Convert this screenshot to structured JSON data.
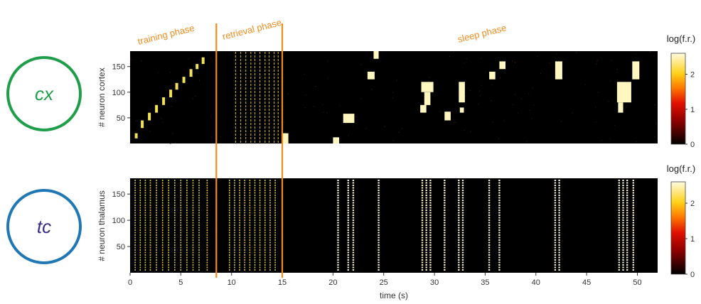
{
  "figure": {
    "circles": [
      {
        "label": "cx",
        "ring_color": "#1f9e4a",
        "text_color": "#1f9e4a"
      },
      {
        "label": "tc",
        "ring_color": "#1f77b4",
        "text_color": "#3b2a86"
      }
    ],
    "phase_labels": [
      "training phase",
      "retrieval phase",
      "sleep phase"
    ],
    "phase_color": "#f08c1e"
  },
  "chart_data": [
    {
      "type": "heatmap",
      "title": "",
      "xlabel": "",
      "ylabel": "# neuron cortex",
      "xlim": [
        0,
        52
      ],
      "ylim": [
        0,
        180
      ],
      "xticks": [
        0,
        5,
        10,
        15,
        20,
        25,
        30,
        35,
        40,
        45,
        50
      ],
      "yticks": [
        50,
        100,
        150
      ],
      "colorbar": {
        "label": "log(f.r.)",
        "ticks": [
          0,
          1,
          2
        ],
        "range": [
          0,
          2.6
        ]
      },
      "phase_boundaries": [
        8.5,
        15.0
      ],
      "training_blocks": [
        {
          "t": 0.6,
          "n0": 10,
          "n1": 20
        },
        {
          "t": 1.2,
          "n0": 30,
          "n1": 45
        },
        {
          "t": 1.9,
          "n0": 45,
          "n1": 60
        },
        {
          "t": 2.6,
          "n0": 60,
          "n1": 75
        },
        {
          "t": 3.3,
          "n0": 75,
          "n1": 90
        },
        {
          "t": 4.0,
          "n0": 90,
          "n1": 105
        },
        {
          "t": 4.6,
          "n0": 105,
          "n1": 118
        },
        {
          "t": 5.3,
          "n0": 118,
          "n1": 130
        },
        {
          "t": 6.0,
          "n0": 130,
          "n1": 145
        },
        {
          "t": 6.6,
          "n0": 145,
          "n1": 155
        },
        {
          "t": 7.2,
          "n0": 155,
          "n1": 168
        }
      ],
      "retrieval_lines": [
        10.4,
        10.9,
        11.4,
        11.9,
        12.3,
        12.8,
        13.3,
        13.7,
        14.2,
        14.6
      ],
      "sleep_blocks": [
        {
          "t0": 15.0,
          "t1": 15.6,
          "n0": 0,
          "n1": 20
        },
        {
          "t0": 20.0,
          "t1": 20.6,
          "n0": 0,
          "n1": 12
        },
        {
          "t0": 21.0,
          "t1": 22.1,
          "n0": 40,
          "n1": 58
        },
        {
          "t0": 23.4,
          "t1": 24.1,
          "n0": 125,
          "n1": 140
        },
        {
          "t0": 24.0,
          "t1": 24.5,
          "n0": 165,
          "n1": 180
        },
        {
          "t0": 28.7,
          "t1": 29.9,
          "n0": 100,
          "n1": 120
        },
        {
          "t0": 29.0,
          "t1": 29.6,
          "n0": 75,
          "n1": 100
        },
        {
          "t0": 28.6,
          "t1": 29.2,
          "n0": 60,
          "n1": 75
        },
        {
          "t0": 31.0,
          "t1": 31.6,
          "n0": 45,
          "n1": 62
        },
        {
          "t0": 32.4,
          "t1": 33.0,
          "n0": 80,
          "n1": 120
        },
        {
          "t0": 32.5,
          "t1": 32.9,
          "n0": 60,
          "n1": 70
        },
        {
          "t0": 35.4,
          "t1": 36.0,
          "n0": 125,
          "n1": 140
        },
        {
          "t0": 36.4,
          "t1": 37.0,
          "n0": 145,
          "n1": 160
        },
        {
          "t0": 41.9,
          "t1": 42.6,
          "n0": 125,
          "n1": 160
        },
        {
          "t0": 48.0,
          "t1": 49.4,
          "n0": 80,
          "n1": 120
        },
        {
          "t0": 48.1,
          "t1": 48.6,
          "n0": 60,
          "n1": 80
        },
        {
          "t0": 49.5,
          "t1": 50.2,
          "n0": 125,
          "n1": 160
        }
      ]
    },
    {
      "type": "heatmap",
      "title": "",
      "xlabel": "time (s)",
      "ylabel": "# neuron thalamus",
      "xlim": [
        0,
        52
      ],
      "ylim": [
        0,
        180
      ],
      "xticks": [
        0,
        5,
        10,
        15,
        20,
        25,
        30,
        35,
        40,
        45,
        50
      ],
      "yticks": [
        50,
        100,
        150
      ],
      "colorbar": {
        "label": "log(f.r.)",
        "ticks": [
          0,
          1,
          2
        ],
        "range": [
          0,
          2.6
        ]
      },
      "phase_boundaries": [
        8.5,
        15.0
      ],
      "burst_times": [
        0.5,
        1.0,
        1.5,
        2.0,
        2.6,
        3.2,
        3.8,
        4.4,
        5.0,
        5.6,
        6.2,
        6.8,
        7.6,
        9.8,
        10.3,
        10.8,
        11.3,
        11.8,
        12.3,
        12.8,
        13.3,
        13.8,
        14.3,
        20.5,
        21.5,
        22.0,
        24.5,
        28.8,
        29.2,
        29.6,
        31.0,
        32.4,
        32.8,
        35.4,
        36.4,
        41.9,
        42.3,
        48.2,
        48.6,
        49.0,
        49.6
      ]
    }
  ]
}
